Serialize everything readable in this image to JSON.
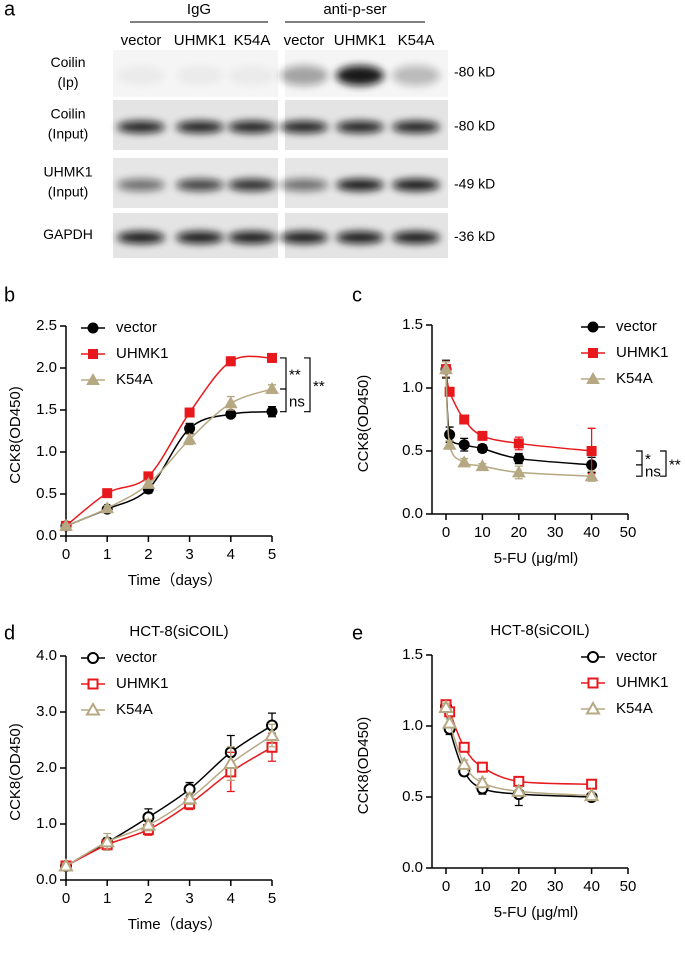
{
  "blot": {
    "letter": "a",
    "groups": [
      "IgG",
      "anti-p-ser"
    ],
    "lanes": [
      "vector",
      "UHMK1",
      "K54A",
      "vector",
      "UHMK1",
      "K54A"
    ],
    "rows": [
      {
        "label": [
          "Coilin",
          "(Ip)"
        ],
        "size": "-80 kD"
      },
      {
        "label": [
          "Coilin",
          "(Input)"
        ],
        "size": "-80 kD"
      },
      {
        "label": [
          "UHMK1",
          "(Input)"
        ],
        "size": "-49 kD"
      },
      {
        "label": [
          "GAPDH"
        ],
        "size": "-36 kD"
      }
    ]
  },
  "chart_data": [
    {
      "type": "line",
      "letter": "b",
      "x_label": "Time（days）",
      "y_label": "CCK8(OD450)",
      "x": [
        0,
        1,
        2,
        3,
        4,
        5
      ],
      "xlim": [
        0,
        5
      ],
      "xticks": [
        0,
        1,
        2,
        3,
        4,
        5
      ],
      "ylim": [
        0,
        2.5
      ],
      "yticks": [
        {
          "value": 0,
          "label": "0.0"
        },
        0.5,
        {
          "value": 1,
          "label": "1.0"
        },
        1.5,
        {
          "value": 2,
          "label": "2.0"
        },
        2.5
      ],
      "marker": "filled",
      "legend": "upper left",
      "series": [
        {
          "name": "vector",
          "color": "#000000",
          "values": [
            0.12,
            0.32,
            0.56,
            1.28,
            1.45,
            1.48
          ],
          "errors": [
            0.02,
            0.03,
            0.05,
            0.06,
            0.03,
            0.06
          ]
        },
        {
          "name": "UHMK1",
          "color": "#e8191c",
          "values": [
            0.12,
            0.51,
            0.71,
            1.47,
            2.08,
            2.12
          ],
          "errors": [
            0.02,
            0.02,
            0.03,
            0.03,
            0.05,
            0.05
          ]
        },
        {
          "name": "K54A",
          "color": "#b5a882",
          "values": [
            0.12,
            0.33,
            0.62,
            1.15,
            1.58,
            1.75
          ],
          "errors": [
            0.02,
            0.03,
            0.04,
            0.06,
            0.08,
            0.05
          ]
        }
      ],
      "significance": [
        "**",
        "ns",
        "**"
      ]
    },
    {
      "type": "line",
      "letter": "c",
      "x_label": "5-FU (μg/ml)",
      "y_label": "CCK8(OD450)",
      "x": [
        0,
        1,
        5,
        10,
        20,
        40
      ],
      "xlim": [
        0,
        50
      ],
      "xticks": [
        0,
        10,
        20,
        30,
        40,
        50
      ],
      "ylim": [
        0,
        1.5
      ],
      "yticks": [
        {
          "value": 0,
          "label": "0.0"
        },
        0.5,
        {
          "value": 1,
          "label": "1.0"
        },
        1.5
      ],
      "marker": "filled",
      "legend": "upper right",
      "series": [
        {
          "name": "vector",
          "color": "#000000",
          "values": [
            1.15,
            0.63,
            0.55,
            0.52,
            0.44,
            0.39
          ],
          "errors": [
            0.07,
            0.06,
            0.05,
            0.03,
            0.04,
            0.06
          ]
        },
        {
          "name": "UHMK1",
          "color": "#e8191c",
          "values": [
            1.15,
            0.97,
            0.75,
            0.62,
            0.56,
            0.5
          ],
          "errors": [
            0.06,
            0.03,
            0.02,
            0.02,
            0.05,
            0.18
          ]
        },
        {
          "name": "K54A",
          "color": "#b5a882",
          "values": [
            1.15,
            0.55,
            0.41,
            0.38,
            0.33,
            0.3
          ],
          "errors": [
            0.06,
            0.03,
            0.03,
            0.02,
            0.05,
            0.04
          ]
        }
      ],
      "significance": [
        "*",
        "ns",
        "**"
      ]
    },
    {
      "type": "line",
      "letter": "d",
      "title": "HCT-8(siCOIL)",
      "x_label": "Time（days）",
      "y_label": "CCK8(OD450)",
      "x": [
        0,
        1,
        2,
        3,
        4,
        5
      ],
      "xlim": [
        0,
        5
      ],
      "xticks": [
        0,
        1,
        2,
        3,
        4,
        5
      ],
      "ylim": [
        0,
        4
      ],
      "yticks": [
        {
          "value": 0,
          "label": "0.0"
        },
        {
          "value": 1,
          "label": "1.0"
        },
        {
          "value": 2,
          "label": "2.0"
        },
        {
          "value": 3,
          "label": "3.0"
        },
        {
          "value": 4,
          "label": "4.0"
        }
      ],
      "marker": "open",
      "legend": "upper left",
      "series": [
        {
          "name": "vector",
          "color": "#000000",
          "values": [
            0.25,
            0.67,
            1.12,
            1.62,
            2.28,
            2.76
          ],
          "errors": [
            0.04,
            0.08,
            0.15,
            0.12,
            0.3,
            0.22
          ]
        },
        {
          "name": "UHMK1",
          "color": "#e8191c",
          "values": [
            0.25,
            0.63,
            0.9,
            1.36,
            1.93,
            2.37
          ],
          "errors": [
            0.03,
            0.06,
            0.1,
            0.1,
            0.35,
            0.25
          ]
        },
        {
          "name": "K54A",
          "color": "#b5a882",
          "values": [
            0.25,
            0.68,
            0.98,
            1.45,
            2.08,
            2.58
          ],
          "errors": [
            0.04,
            0.15,
            0.1,
            0.1,
            0.3,
            0.2
          ]
        }
      ]
    },
    {
      "type": "line",
      "letter": "e",
      "title": "HCT-8(siCOIL)",
      "x_label": "5-FU (μg/ml)",
      "y_label": "CCK8(OD450)",
      "x": [
        0,
        1,
        5,
        10,
        20,
        40
      ],
      "xlim": [
        0,
        50
      ],
      "xticks": [
        0,
        10,
        20,
        30,
        40,
        50
      ],
      "ylim": [
        0,
        1.5
      ],
      "yticks": [
        {
          "value": 0,
          "label": "0.0"
        },
        0.5,
        {
          "value": 1,
          "label": "1.0"
        },
        1.5
      ],
      "marker": "open",
      "legend": "upper right",
      "series": [
        {
          "name": "vector",
          "color": "#000000",
          "values": [
            1.14,
            0.98,
            0.68,
            0.56,
            0.52,
            0.5
          ],
          "errors": [
            0.04,
            0.04,
            0.03,
            0.04,
            0.08,
            0.02
          ]
        },
        {
          "name": "UHMK1",
          "color": "#e8191c",
          "values": [
            1.15,
            1.1,
            0.85,
            0.71,
            0.61,
            0.59
          ],
          "errors": [
            0.03,
            0.03,
            0.03,
            0.03,
            0.03,
            0.02
          ]
        },
        {
          "name": "K54A",
          "color": "#b5a882",
          "values": [
            1.13,
            1.02,
            0.73,
            0.6,
            0.54,
            0.51
          ],
          "errors": [
            0.03,
            0.03,
            0.03,
            0.03,
            0.03,
            0.02
          ]
        }
      ]
    }
  ]
}
